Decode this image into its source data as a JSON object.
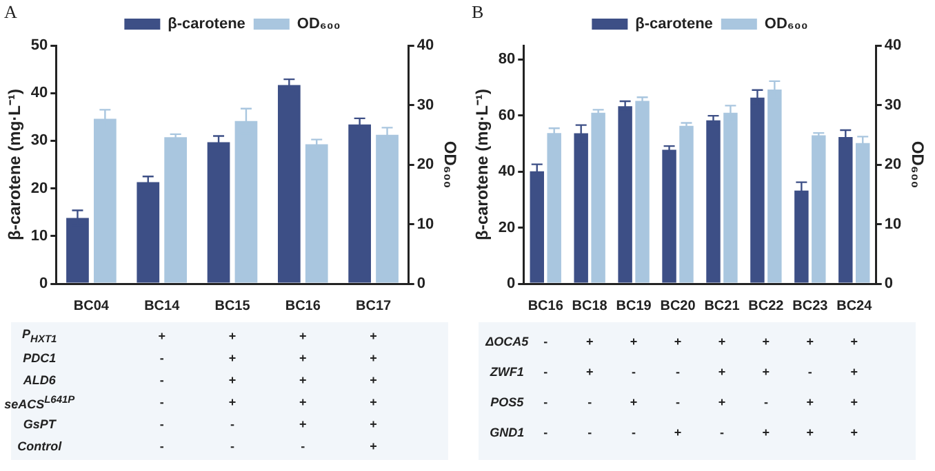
{
  "chart_data": [
    {
      "type": "bar",
      "title": "A",
      "categories": [
        "BC04",
        "BC14",
        "BC15",
        "BC16",
        "BC17"
      ],
      "series": [
        {
          "name": "β-carotene",
          "color": "#3d4f86",
          "values": [
            13.8,
            21.3,
            29.7,
            41.7,
            33.4
          ],
          "errors": [
            1.6,
            1.2,
            1.3,
            1.2,
            1.3
          ]
        },
        {
          "name": "OD₆₀₀",
          "color": "#a9c6df",
          "axis": "y2",
          "values": [
            27.7,
            24.6,
            27.3,
            23.4,
            25.0
          ],
          "errors": [
            1.5,
            0.5,
            2.1,
            0.8,
            1.2
          ]
        }
      ],
      "ylabel": "β-carotene (mg·L⁻¹)",
      "y2label": "OD₆₀₀",
      "ylim": [
        0,
        50
      ],
      "yticks": [
        0,
        10,
        20,
        30,
        40,
        50
      ],
      "y2lim": [
        0,
        40
      ],
      "y2ticks": [
        0,
        10,
        20,
        30,
        40
      ],
      "legend": "top",
      "annotations": [
        "P$_{HXT1}$",
        "+",
        "+",
        "+",
        "+",
        "PDC1",
        "-",
        "+",
        "+",
        "+",
        "ALD6",
        "-",
        "+",
        "+",
        "+",
        "seACS$^{L641P}$",
        "-",
        "+",
        "+",
        "+",
        "GsPT",
        "-",
        "-",
        "+",
        "+",
        "Control",
        "-",
        "-",
        "-",
        "+"
      ]
    },
    {
      "type": "bar",
      "title": "B",
      "categories": [
        "BC16",
        "BC18",
        "BC19",
        "BC20",
        "BC21",
        "BC22",
        "BC23",
        "BC24"
      ],
      "series": [
        {
          "name": "β-carotene",
          "color": "#3d4f86",
          "values": [
            40.1,
            53.7,
            63.3,
            47.8,
            58.3,
            66.4,
            33.2,
            52.3
          ],
          "errors": [
            2.5,
            2.9,
            1.8,
            1.3,
            1.6,
            2.7,
            3.0,
            2.5
          ]
        },
        {
          "name": "OD₆₀₀",
          "color": "#a9c6df",
          "axis": "y2",
          "values": [
            25.3,
            28.7,
            30.7,
            26.5,
            28.7,
            32.6,
            24.9,
            23.6
          ],
          "errors": [
            0.8,
            0.5,
            0.6,
            0.5,
            1.2,
            1.4,
            0.4,
            1.1
          ]
        }
      ],
      "ylabel": "β-carotene (mg·L⁻¹)",
      "y2label": "OD₆₀₀",
      "ylim": [
        0,
        85
      ],
      "yticks": [
        0,
        20,
        40,
        60,
        80
      ],
      "y2lim": [
        0,
        40
      ],
      "y2ticks": [
        0,
        10,
        20,
        30,
        40
      ],
      "legend": "top",
      "annotations": [
        "ΔOCA5",
        "-",
        "+",
        "+",
        "+",
        "+",
        "+",
        "+",
        "+",
        "ZWF1",
        "-",
        "+",
        "-",
        "-",
        "+",
        "+",
        "-",
        "+",
        "POS5",
        "-",
        "-",
        "+",
        "-",
        "+",
        "-",
        "+",
        "+",
        "GND1",
        "-",
        "-",
        "-",
        "+",
        "-",
        "+",
        "+",
        "+"
      ]
    }
  ]
}
